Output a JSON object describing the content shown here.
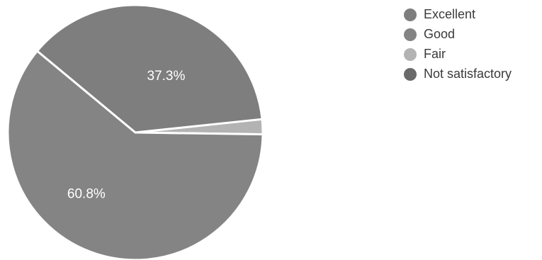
{
  "chart_data": {
    "type": "pie",
    "slices": [
      {
        "label": "Excellent",
        "value": 37.3,
        "value_label": "37.3%",
        "color": "#7e7e7e"
      },
      {
        "label": "Good",
        "value": 60.8,
        "value_label": "60.8%",
        "color": "#848484"
      },
      {
        "label": "Fair",
        "value": 1.9,
        "value_label": "",
        "color": "#b3b3b3"
      },
      {
        "label": "Not satisfactory",
        "value": 0.0,
        "value_label": "",
        "color": "#6a6a6a"
      }
    ],
    "legend_position": "top-right"
  }
}
